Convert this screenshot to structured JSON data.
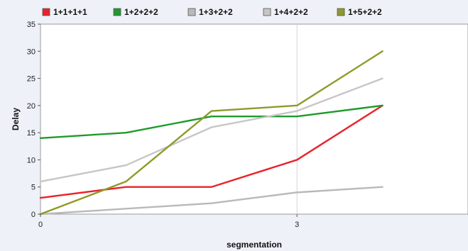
{
  "chart_data": {
    "type": "line",
    "xlabel": "segmentation",
    "ylabel": "Delay",
    "xlim": [
      0,
      5
    ],
    "ylim": [
      0,
      35
    ],
    "x_ticks": [
      0,
      3
    ],
    "y_ticks": [
      0,
      5,
      10,
      15,
      20,
      25,
      30,
      35
    ],
    "grid": true,
    "legend_position": "top",
    "x": [
      0,
      1,
      2,
      3,
      4
    ],
    "series": [
      {
        "name": "1+1+1+1",
        "color": "#e8232c",
        "values": [
          3,
          5,
          5,
          10,
          20
        ]
      },
      {
        "name": "1+2+2+2",
        "color": "#1f9a2c",
        "values": [
          14,
          15,
          18,
          18,
          20
        ]
      },
      {
        "name": "1+3+2+2",
        "color": "#b9b9b9",
        "values": [
          0,
          1,
          2,
          4,
          5
        ]
      },
      {
        "name": "1+4+2+2",
        "color": "#c6c6c6",
        "values": [
          6,
          9,
          16,
          19,
          25
        ]
      },
      {
        "name": "1+5+2+2",
        "color": "#8f9a2a",
        "values": [
          0,
          6,
          19,
          20,
          30
        ]
      }
    ]
  }
}
